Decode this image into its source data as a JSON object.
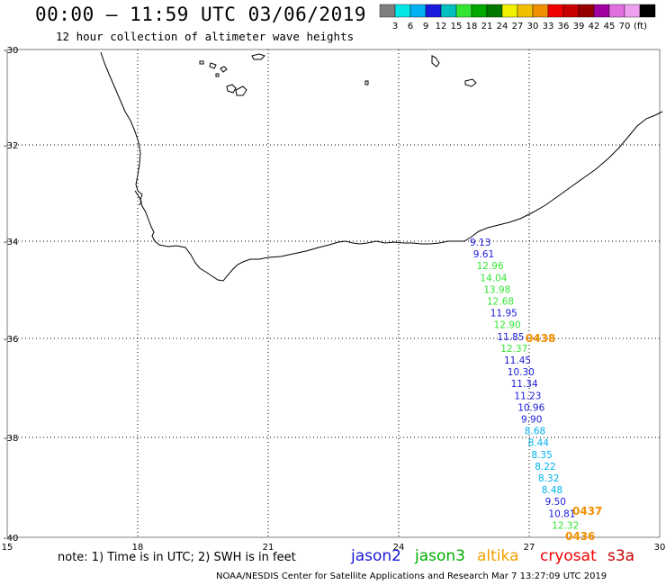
{
  "header": {
    "title": "00:00 – 11:59 UTC 03/06/2019",
    "subtitle": "12 hour collection of altimeter wave heights"
  },
  "colorbar": {
    "colors": [
      "#7f7f7f",
      "#00e6e6",
      "#00b0f0",
      "#1a1adc",
      "#00bfbf",
      "#33e633",
      "#00a800",
      "#007800",
      "#f0f000",
      "#f0c000",
      "#f09000",
      "#f00000",
      "#c80000",
      "#960000",
      "#a000a0",
      "#e070e0",
      "#f0a0f0",
      "#000000"
    ],
    "ticks": [
      "3",
      "6",
      "9",
      "12",
      "15",
      "18",
      "21",
      "24",
      "27",
      "30",
      "33",
      "36",
      "39",
      "42",
      "45",
      "70"
    ],
    "unit": "(ft)"
  },
  "axes": {
    "lat_labels": [
      "-30",
      "-32",
      "-34",
      "-36",
      "-38",
      "-40"
    ],
    "lon_labels": [
      "15",
      "18",
      "21",
      "24",
      "27",
      "30"
    ],
    "lon_min": 15,
    "lon_max": 30,
    "lat_min": -40,
    "lat_max": -30
  },
  "track": {
    "values": [
      {
        "v": "9.13",
        "sat": "jason2"
      },
      {
        "v": "9.61",
        "sat": "jason2"
      },
      {
        "v": "12.96",
        "sat": "jason3"
      },
      {
        "v": "14.04",
        "sat": "jason3"
      },
      {
        "v": "13.98",
        "sat": "jason3"
      },
      {
        "v": "12.68",
        "sat": "jason3"
      },
      {
        "v": "11.95",
        "sat": "jason2"
      },
      {
        "v": "12.90",
        "sat": "jason3"
      },
      {
        "v": "11.85",
        "sat": "jason2"
      },
      {
        "v": "12.37",
        "sat": "jason3"
      },
      {
        "v": "11.45",
        "sat": "jason2"
      },
      {
        "v": "10.30",
        "sat": "jason2"
      },
      {
        "v": "11.34",
        "sat": "jason2"
      },
      {
        "v": "11.23",
        "sat": "jason2"
      },
      {
        "v": "10.96",
        "sat": "jason2"
      },
      {
        "v": "9.90",
        "sat": "jason2"
      },
      {
        "v": "8.68",
        "sat": "cyan"
      },
      {
        "v": "8.44",
        "sat": "cyan"
      },
      {
        "v": "8.35",
        "sat": "cyan"
      },
      {
        "v": "8.22",
        "sat": "cyan"
      },
      {
        "v": "8.32",
        "sat": "cyan"
      },
      {
        "v": "8.48",
        "sat": "cyan"
      },
      {
        "v": "9.50",
        "sat": "jason2"
      },
      {
        "v": "10.81",
        "sat": "jason2"
      },
      {
        "v": "12.32",
        "sat": "jason3"
      }
    ],
    "times": [
      "0438",
      "0437",
      "0436"
    ]
  },
  "sat_colors": {
    "jason2": "#1a1adc",
    "jason3": "#33e633",
    "cyan": "#00b0f0",
    "time": "#f09000"
  },
  "footer": {
    "note": "note: 1) Time is in UTC; 2) SWH is in feet",
    "legend": [
      {
        "label": "jason2",
        "color": "#1a1adc"
      },
      {
        "label": "jason3",
        "color": "#00b000"
      },
      {
        "label": "altika",
        "color": "#f0a000"
      },
      {
        "label": "cryosat",
        "color": "#f00000"
      },
      {
        "label": "s3a",
        "color": "#c80000"
      }
    ],
    "source": "NOAA/NESDIS Center for Satellite Applications and Research  Mar  7 13:27:09 UTC 2019"
  }
}
